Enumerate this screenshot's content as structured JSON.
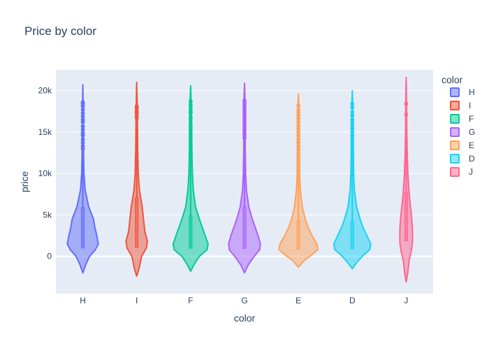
{
  "chart_data": {
    "type": "violin",
    "title": "Price by color",
    "xlabel": "color",
    "ylabel": "price",
    "ylim": [
      -4500,
      22500
    ],
    "yticks": [
      {
        "value": 0,
        "label": "0"
      },
      {
        "value": 5000,
        "label": "5k"
      },
      {
        "value": 10000,
        "label": "10k"
      },
      {
        "value": 15000,
        "label": "15k"
      },
      {
        "value": 20000,
        "label": "20k"
      }
    ],
    "categories": [
      "H",
      "I",
      "F",
      "G",
      "E",
      "D",
      "J"
    ],
    "legend": {
      "title": "color",
      "placement": "right"
    },
    "grid": true,
    "series": [
      {
        "name": "H",
        "color": "#636efa",
        "min": -2000,
        "max": 20700,
        "median": 3300,
        "box": {
          "q1": 1000,
          "q3": 5900,
          "upper_fence": 12600
        },
        "profile": [
          [
            -2000,
            0
          ],
          [
            -1000,
            0.15
          ],
          [
            0,
            0.35
          ],
          [
            800,
            0.65
          ],
          [
            1500,
            0.8
          ],
          [
            2500,
            0.72
          ],
          [
            3500,
            0.62
          ],
          [
            4500,
            0.55
          ],
          [
            6000,
            0.3
          ],
          [
            8000,
            0.12
          ],
          [
            10000,
            0.06
          ],
          [
            13000,
            0.035
          ],
          [
            16000,
            0.02
          ],
          [
            18500,
            0.012
          ],
          [
            20700,
            0
          ]
        ],
        "outliers": [
          13000,
          13300,
          13700,
          14100,
          14600,
          14900,
          15300,
          15700,
          16200,
          16500,
          16900,
          17300,
          17700,
          18100,
          18400,
          18600
        ]
      },
      {
        "name": "I",
        "color": "#ef553b",
        "min": -2400,
        "max": 21000,
        "median": 3700,
        "box": {
          "q1": 1100,
          "q3": 7100,
          "upper_fence": 16000
        },
        "profile": [
          [
            -2400,
            0
          ],
          [
            -1500,
            0.12
          ],
          [
            0,
            0.25
          ],
          [
            1000,
            0.5
          ],
          [
            1800,
            0.55
          ],
          [
            3000,
            0.42
          ],
          [
            4500,
            0.35
          ],
          [
            6000,
            0.28
          ],
          [
            8000,
            0.14
          ],
          [
            10000,
            0.08
          ],
          [
            13000,
            0.05
          ],
          [
            16000,
            0.04
          ],
          [
            18500,
            0.025
          ],
          [
            21000,
            0
          ]
        ],
        "outliers": [
          16700,
          17000,
          17300,
          17600,
          17900,
          18100
        ]
      },
      {
        "name": "F",
        "color": "#00cc96",
        "min": -1800,
        "max": 20600,
        "median": 2400,
        "box": {
          "q1": 980,
          "q3": 4900,
          "upper_fence": 11800
        },
        "profile": [
          [
            -1800,
            0
          ],
          [
            -900,
            0.2
          ],
          [
            0,
            0.45
          ],
          [
            800,
            0.85
          ],
          [
            1500,
            0.9
          ],
          [
            2500,
            0.75
          ],
          [
            3500,
            0.6
          ],
          [
            4500,
            0.45
          ],
          [
            6000,
            0.25
          ],
          [
            8000,
            0.14
          ],
          [
            10000,
            0.09
          ],
          [
            13000,
            0.06
          ],
          [
            16000,
            0.045
          ],
          [
            18500,
            0.03
          ],
          [
            20600,
            0
          ]
        ],
        "outliers": [
          12000,
          12400,
          12800,
          13200,
          13600,
          14100,
          14500,
          14900,
          15300,
          15700,
          16000,
          16500,
          16800,
          17300,
          17600,
          18000,
          18300,
          18700
        ]
      },
      {
        "name": "G",
        "color": "#ab63fa",
        "min": -2000,
        "max": 20900,
        "median": 2200,
        "box": {
          "q1": 950,
          "q3": 6000,
          "upper_fence": 14000
        },
        "profile": [
          [
            -2000,
            0
          ],
          [
            -1000,
            0.2
          ],
          [
            0,
            0.5
          ],
          [
            800,
            0.78
          ],
          [
            1500,
            0.82
          ],
          [
            2500,
            0.7
          ],
          [
            3500,
            0.55
          ],
          [
            4500,
            0.4
          ],
          [
            6000,
            0.22
          ],
          [
            8000,
            0.1
          ],
          [
            10000,
            0.06
          ],
          [
            13000,
            0.04
          ],
          [
            16000,
            0.035
          ],
          [
            19000,
            0.025
          ],
          [
            20900,
            0
          ]
        ],
        "outliers": [
          14300,
          14600,
          14900,
          15200,
          15500,
          15800,
          16100,
          16400,
          16700,
          17000,
          17300,
          17600,
          17900,
          18200,
          18500,
          18800
        ]
      },
      {
        "name": "E",
        "color": "#ffa15a",
        "min": -1300,
        "max": 19600,
        "median": 1750,
        "box": {
          "q1": 880,
          "q3": 4300,
          "upper_fence": 8700
        },
        "profile": [
          [
            -1300,
            0
          ],
          [
            -500,
            0.3
          ],
          [
            200,
            0.7
          ],
          [
            800,
            1.0
          ],
          [
            1500,
            0.95
          ],
          [
            2500,
            0.7
          ],
          [
            3500,
            0.5
          ],
          [
            4500,
            0.35
          ],
          [
            6000,
            0.2
          ],
          [
            8000,
            0.1
          ],
          [
            10000,
            0.06
          ],
          [
            13000,
            0.045
          ],
          [
            16000,
            0.035
          ],
          [
            18500,
            0.02
          ],
          [
            19600,
            0
          ]
        ],
        "outliers": [
          8800,
          9200,
          9600,
          10000,
          10400,
          10800,
          11200,
          11600,
          12000,
          12400,
          12900,
          13300,
          13700,
          14100,
          14600,
          15000,
          15400,
          15800,
          16200,
          16600,
          17000,
          17400,
          17700,
          18200
        ]
      },
      {
        "name": "D",
        "color": "#19d3f3",
        "min": -1500,
        "max": 20000,
        "median": 1850,
        "box": {
          "q1": 910,
          "q3": 4200,
          "upper_fence": 9500
        },
        "profile": [
          [
            -1500,
            0
          ],
          [
            -700,
            0.25
          ],
          [
            200,
            0.6
          ],
          [
            800,
            0.9
          ],
          [
            1500,
            0.95
          ],
          [
            2500,
            0.75
          ],
          [
            3500,
            0.55
          ],
          [
            4500,
            0.4
          ],
          [
            6000,
            0.22
          ],
          [
            8000,
            0.11
          ],
          [
            10000,
            0.07
          ],
          [
            13000,
            0.045
          ],
          [
            16000,
            0.03
          ],
          [
            18500,
            0.02
          ],
          [
            20000,
            0
          ]
        ],
        "outliers": [
          9800,
          10200,
          10600,
          11000,
          11400,
          11800,
          12200,
          12600,
          13000,
          13400,
          13800,
          14200,
          14600,
          15000,
          15400,
          15800,
          16200,
          16500,
          17000,
          17400,
          18000,
          18400
        ]
      },
      {
        "name": "J",
        "color": "#ff6692",
        "min": -3100,
        "max": 21600,
        "median": 4200,
        "box": {
          "q1": 1860,
          "q3": 7700,
          "upper_fence": 16400
        },
        "profile": [
          [
            -3100,
            0
          ],
          [
            -2000,
            0.08
          ],
          [
            -500,
            0.15
          ],
          [
            500,
            0.25
          ],
          [
            1500,
            0.32
          ],
          [
            2500,
            0.33
          ],
          [
            3500,
            0.32
          ],
          [
            5000,
            0.27
          ],
          [
            6500,
            0.2
          ],
          [
            8000,
            0.14
          ],
          [
            10000,
            0.09
          ],
          [
            12000,
            0.06
          ],
          [
            15000,
            0.035
          ],
          [
            18000,
            0.025
          ],
          [
            21600,
            0
          ]
        ],
        "outliers": [
          17100,
          18400
        ]
      }
    ]
  }
}
